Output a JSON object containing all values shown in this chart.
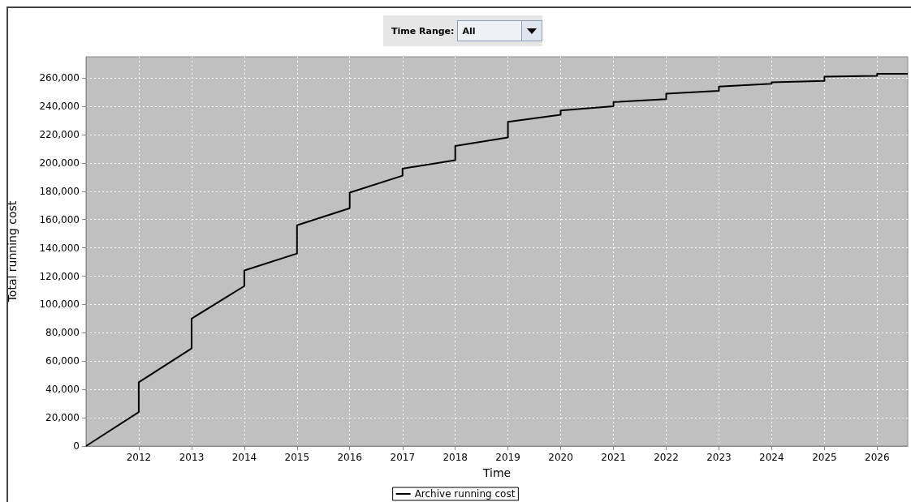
{
  "chart_data": {
    "type": "line",
    "xlabel": "Time",
    "ylabel": "Total running cost",
    "annotations": [
      "Time Range:",
      "All"
    ],
    "series": [
      {
        "name": "Archive running cost",
        "color": "#000000",
        "x": [
          "2011",
          "2012",
          "2012",
          "2013",
          "2013",
          "2014",
          "2014",
          "2015",
          "2015",
          "2016",
          "2016",
          "2017",
          "2017",
          "2018",
          "2018",
          "2019",
          "2019",
          "2020",
          "2020",
          "2021",
          "2021",
          "2022",
          "2022",
          "2023",
          "2023",
          "2024",
          "2024",
          "2025",
          "2025",
          "2026",
          "2026",
          "2026-08"
        ],
        "values": [
          0,
          24000,
          45000,
          69000,
          90000,
          113000,
          124000,
          136000,
          156000,
          168000,
          179000,
          191000,
          196000,
          202000,
          212000,
          218000,
          229000,
          234000,
          237000,
          240000,
          243000,
          245000,
          249000,
          251000,
          254000,
          256000,
          257000,
          258000,
          261000,
          261500,
          263000,
          263000
        ]
      }
    ],
    "xlim": [
      "2011",
      "2026-08"
    ],
    "xticks": [
      "2012",
      "2013",
      "2014",
      "2015",
      "2016",
      "2017",
      "2018",
      "2019",
      "2020",
      "2021",
      "2022",
      "2023",
      "2024",
      "2025",
      "2026"
    ],
    "ylim": [
      0,
      275000
    ],
    "yticks": [
      0,
      {
        "value": 20000,
        "label": "20,000"
      },
      {
        "value": 40000,
        "label": "40,000"
      },
      {
        "value": 60000,
        "label": "60,000"
      },
      {
        "value": 80000,
        "label": "80,000"
      },
      {
        "value": 100000,
        "label": "100,000"
      },
      {
        "value": 120000,
        "label": "120,000"
      },
      {
        "value": 140000,
        "label": "140,000"
      },
      {
        "value": 160000,
        "label": "160,000"
      },
      {
        "value": 180000,
        "label": "180,000"
      },
      {
        "value": 200000,
        "label": "200,000"
      },
      {
        "value": 220000,
        "label": "220,000"
      },
      {
        "value": 240000,
        "label": "240,000"
      },
      {
        "value": 260000,
        "label": "260,000"
      }
    ],
    "grid": true,
    "legend": "bottom",
    "marker": "none",
    "line_style": "solid"
  }
}
